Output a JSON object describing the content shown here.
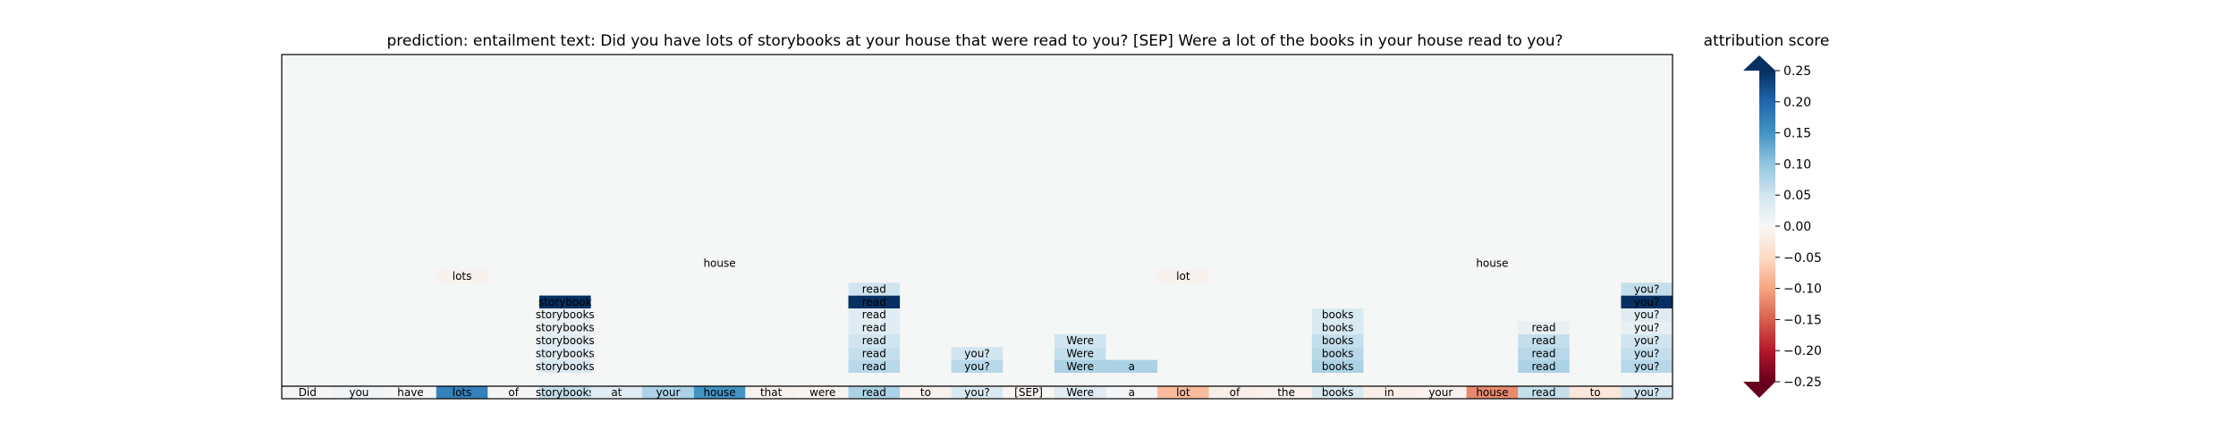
{
  "chart_data": {
    "type": "heatmap",
    "title": "prediction:  entailment     text:  Did you have lots of storybooks at your house that were read to you? [SEP] Were a lot of the books in your house read to you?",
    "colorbar": {
      "label": "attribution score",
      "ticks": [
        "0.25",
        "0.20",
        "0.15",
        "0.10",
        "0.05",
        "0.00",
        "−0.05",
        "−0.10",
        "−0.15",
        "−0.20",
        "−0.25"
      ],
      "vmin": -0.25,
      "vmax": 0.25,
      "colormap": "RdBu"
    },
    "tokens": [
      "Did",
      "you",
      "have",
      "lots",
      "of",
      "storybooks",
      "at",
      "your",
      "house",
      "that",
      "were",
      "read",
      "to",
      "you?",
      "[SEP]",
      "Were",
      "a",
      "lot",
      "of",
      "the",
      "books",
      "in",
      "your",
      "house",
      "read",
      "to",
      "you?"
    ],
    "token_scores": [
      0.005,
      0.01,
      0.005,
      0.17,
      0.005,
      0.06,
      0.03,
      0.08,
      0.15,
      -0.01,
      -0.005,
      0.08,
      -0.01,
      0.04,
      -0.005,
      0.03,
      0.005,
      -0.08,
      -0.015,
      -0.01,
      0.04,
      -0.015,
      -0.01,
      -0.12,
      0.06,
      -0.03,
      0.05
    ],
    "layers": [
      {
        "cells": [
          {
            "col": 5,
            "text": "storybooks",
            "score": 0.04
          },
          {
            "col": 11,
            "text": "read",
            "score": 0.07
          },
          {
            "col": 13,
            "text": "you?",
            "score": 0.07
          },
          {
            "col": 15,
            "text": "Were",
            "score": 0.08
          },
          {
            "col": 16,
            "text": "a",
            "score": 0.08
          },
          {
            "col": 20,
            "text": "books",
            "score": 0.08
          },
          {
            "col": 24,
            "text": "read",
            "score": 0.08
          },
          {
            "col": 26,
            "text": "you?",
            "score": 0.07
          }
        ]
      },
      {
        "cells": [
          {
            "col": 5,
            "text": "storybooks",
            "score": 0.03
          },
          {
            "col": 11,
            "text": "read",
            "score": 0.06
          },
          {
            "col": 13,
            "text": "you?",
            "score": 0.05
          },
          {
            "col": 15,
            "text": "Were",
            "score": 0.06
          },
          {
            "col": 20,
            "text": "books",
            "score": 0.07
          },
          {
            "col": 24,
            "text": "read",
            "score": 0.07
          },
          {
            "col": 26,
            "text": "you?",
            "score": 0.06
          }
        ]
      },
      {
        "cells": [
          {
            "col": 5,
            "text": "storybooks",
            "score": 0.03
          },
          {
            "col": 11,
            "text": "read",
            "score": 0.05
          },
          {
            "col": 15,
            "text": "Were",
            "score": 0.05
          },
          {
            "col": 20,
            "text": "books",
            "score": 0.06
          },
          {
            "col": 24,
            "text": "read",
            "score": 0.06
          },
          {
            "col": 26,
            "text": "you?",
            "score": 0.05
          }
        ]
      },
      {
        "cells": [
          {
            "col": 5,
            "text": "storybooks",
            "score": 0.02
          },
          {
            "col": 11,
            "text": "read",
            "score": 0.03
          },
          {
            "col": 20,
            "text": "books",
            "score": 0.04
          },
          {
            "col": 24,
            "text": "read",
            "score": 0.02
          },
          {
            "col": 26,
            "text": "you?",
            "score": 0.02
          }
        ]
      },
      {
        "cells": [
          {
            "col": 5,
            "text": "storybooks",
            "score": 0.02
          },
          {
            "col": 11,
            "text": "read",
            "score": 0.03
          },
          {
            "col": 20,
            "text": "books",
            "score": 0.04
          },
          {
            "col": 26,
            "text": "you?",
            "score": 0.03
          }
        ]
      },
      {
        "cells": [
          {
            "col": 5,
            "text": "storybook",
            "score": 0.25
          },
          {
            "col": 11,
            "text": "read",
            "score": 0.25
          },
          {
            "col": 26,
            "text": "you?",
            "score": 0.25
          }
        ]
      },
      {
        "cells": [
          {
            "col": 11,
            "text": "read",
            "score": 0.05
          },
          {
            "col": 26,
            "text": "you?",
            "score": 0.06
          }
        ]
      },
      {
        "cells": [
          {
            "col": 3,
            "text": "lots",
            "score": -0.01
          },
          {
            "col": 17,
            "text": "lot",
            "score": -0.01
          }
        ]
      },
      {
        "cells": [
          {
            "col": 8,
            "text": "house",
            "score": 0.0
          },
          {
            "col": 23,
            "text": "house",
            "score": 0.0
          }
        ]
      }
    ]
  }
}
